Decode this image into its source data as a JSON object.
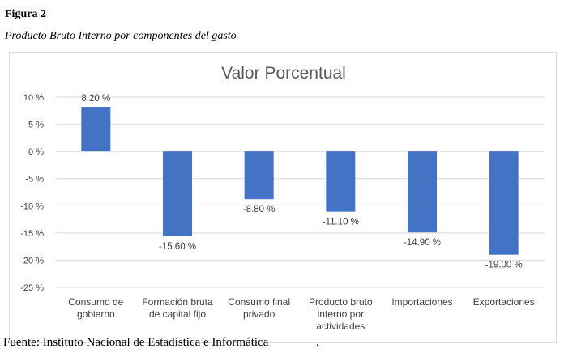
{
  "figure": {
    "label": "Figura 2",
    "caption": "Producto Bruto Interno por componentes del gasto",
    "source": "Fuente: Instituto Nacional de Estadística e Informática",
    "source_trail": "."
  },
  "chart_data": {
    "type": "bar",
    "title": "Valor Porcentual",
    "categories": [
      [
        "Consumo de",
        "gobierno"
      ],
      [
        "Formación bruta",
        "de capital fijo"
      ],
      [
        "Consumo final",
        "privado"
      ],
      [
        "Producto bruto",
        "interno por",
        "actividades"
      ],
      [
        "Importaciones"
      ],
      [
        "Exportaciones"
      ]
    ],
    "values": [
      8.2,
      -15.6,
      -8.8,
      -11.1,
      -14.9,
      -19.0
    ],
    "data_labels": [
      "8.20 %",
      "-15.60 %",
      "-8.80 %",
      "-11.10 %",
      "-14.90 %",
      "-19.00 %"
    ],
    "y_ticks": [
      10,
      5,
      0,
      -5,
      -10,
      -15,
      -20,
      -25
    ],
    "y_tick_labels": [
      "10 %",
      "5 %",
      "0 %",
      "-5 %",
      "-10 %",
      "-15 %",
      "-20 %",
      "-25 %"
    ],
    "ylim": [
      -25,
      10
    ],
    "grid": true,
    "bar_color": "#4472C4",
    "grid_color": "#d9d9d9"
  }
}
